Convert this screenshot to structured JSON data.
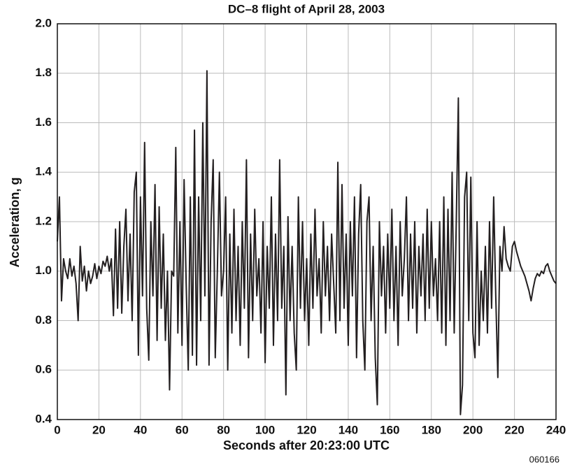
{
  "chart_data": {
    "type": "line",
    "title": "DC–8 flight of April 28, 2003",
    "xlabel": "Seconds after 20:23:00 UTC",
    "ylabel": "Acceleration, g",
    "annotation": "060166",
    "grid": true,
    "xlim": [
      0,
      240
    ],
    "xticks": [
      0,
      20,
      40,
      60,
      80,
      100,
      120,
      140,
      160,
      180,
      200,
      220,
      240
    ],
    "ylim": [
      0.4,
      2.0
    ],
    "yticks": [
      0.4,
      0.6,
      0.8,
      {
        "value": 1,
        "label": "1.0"
      },
      1.2,
      1.4,
      1.6,
      1.8,
      {
        "value": 2,
        "label": "2.0"
      }
    ],
    "x": [
      0,
      1,
      2,
      3,
      4,
      5,
      6,
      7,
      8,
      9,
      10,
      11,
      12,
      13,
      14,
      15,
      16,
      17,
      18,
      19,
      20,
      21,
      22,
      23,
      24,
      25,
      26,
      27,
      28,
      29,
      30,
      31,
      32,
      33,
      34,
      35,
      36,
      37,
      38,
      39,
      40,
      41,
      42,
      43,
      44,
      45,
      46,
      47,
      48,
      49,
      50,
      51,
      52,
      53,
      54,
      55,
      56,
      57,
      58,
      59,
      60,
      61,
      62,
      63,
      64,
      65,
      66,
      67,
      68,
      69,
      70,
      71,
      72,
      73,
      74,
      75,
      76,
      77,
      78,
      79,
      80,
      81,
      82,
      83,
      84,
      85,
      86,
      87,
      88,
      89,
      90,
      91,
      92,
      93,
      94,
      95,
      96,
      97,
      98,
      99,
      100,
      101,
      102,
      103,
      104,
      105,
      106,
      107,
      108,
      109,
      110,
      111,
      112,
      113,
      114,
      115,
      116,
      117,
      118,
      119,
      120,
      121,
      122,
      123,
      124,
      125,
      126,
      127,
      128,
      129,
      130,
      131,
      132,
      133,
      134,
      135,
      136,
      137,
      138,
      139,
      140,
      141,
      142,
      143,
      144,
      145,
      146,
      147,
      148,
      149,
      150,
      151,
      152,
      153,
      154,
      155,
      156,
      157,
      158,
      159,
      160,
      161,
      162,
      163,
      164,
      165,
      166,
      167,
      168,
      169,
      170,
      171,
      172,
      173,
      174,
      175,
      176,
      177,
      178,
      179,
      180,
      181,
      182,
      183,
      184,
      185,
      186,
      187,
      188,
      189,
      190,
      191,
      192,
      193,
      194,
      195,
      196,
      197,
      198,
      199,
      200,
      201,
      202,
      203,
      204,
      205,
      206,
      207,
      208,
      209,
      210,
      211,
      212,
      213,
      214,
      215,
      216,
      217,
      218,
      219,
      220,
      221,
      222,
      223,
      224,
      225,
      226,
      227,
      228,
      229,
      230,
      231,
      232,
      233,
      234,
      235,
      236,
      237,
      238,
      239,
      240
    ],
    "series": [
      {
        "name": "Acceleration",
        "color": "#231f20",
        "values": [
          1.12,
          1.3,
          0.88,
          1.05,
          1.0,
          0.97,
          1.05,
          0.98,
          1.02,
          0.95,
          0.8,
          1.1,
          0.96,
          1.02,
          0.92,
          1.0,
          0.95,
          0.98,
          1.03,
          0.97,
          1.02,
          0.99,
          1.04,
          1.02,
          1.06,
          1.0,
          1.05,
          0.82,
          1.17,
          0.85,
          1.2,
          0.83,
          1.1,
          1.25,
          0.88,
          1.15,
          0.8,
          1.32,
          1.4,
          0.66,
          1.3,
          0.9,
          1.52,
          0.85,
          0.64,
          1.2,
          0.9,
          1.35,
          0.72,
          1.26,
          0.85,
          1.15,
          0.72,
          1.0,
          0.52,
          1.0,
          0.98,
          1.5,
          0.75,
          1.2,
          0.7,
          1.37,
          0.95,
          0.6,
          1.3,
          0.66,
          1.57,
          0.62,
          1.3,
          0.8,
          1.6,
          0.9,
          1.81,
          0.62,
          1.2,
          1.45,
          0.65,
          1.0,
          1.4,
          0.9,
          1.0,
          1.3,
          0.6,
          1.15,
          0.75,
          1.25,
          0.8,
          1.1,
          0.7,
          1.2,
          0.85,
          1.45,
          0.65,
          1.15,
          0.8,
          1.25,
          0.9,
          1.05,
          0.75,
          1.2,
          0.63,
          1.1,
          0.85,
          1.3,
          0.7,
          1.15,
          0.8,
          1.45,
          0.85,
          1.1,
          0.5,
          1.22,
          0.8,
          1.1,
          0.75,
          0.6,
          1.3,
          0.85,
          1.2,
          0.8,
          1.05,
          0.7,
          1.15,
          0.85,
          1.25,
          0.9,
          1.05,
          0.75,
          1.2,
          0.9,
          1.1,
          0.8,
          1.15,
          0.95,
          0.75,
          1.44,
          0.8,
          1.35,
          0.85,
          1.15,
          0.7,
          1.2,
          0.9,
          1.3,
          0.65,
          1.15,
          1.35,
          0.8,
          0.6,
          1.2,
          1.3,
          0.8,
          1.1,
          0.65,
          0.46,
          1.2,
          0.9,
          1.1,
          0.75,
          1.15,
          0.85,
          1.25,
          0.8,
          1.1,
          0.7,
          1.2,
          0.9,
          1.05,
          1.3,
          0.8,
          1.15,
          0.85,
          1.2,
          0.75,
          1.1,
          0.9,
          1.15,
          0.8,
          1.25,
          0.85,
          1.2,
          0.9,
          1.05,
          0.8,
          1.2,
          0.75,
          1.3,
          0.7,
          1.25,
          0.8,
          1.4,
          0.75,
          1.2,
          1.7,
          0.42,
          0.54,
          1.3,
          1.4,
          0.8,
          1.38,
          0.75,
          0.65,
          1.2,
          0.7,
          1.0,
          0.8,
          1.1,
          0.75,
          1.2,
          0.85,
          1.3,
          0.9,
          0.57,
          1.1,
          1.0,
          1.18,
          1.05,
          1.02,
          1.0,
          1.1,
          1.12,
          1.08,
          1.05,
          1.02,
          1.0,
          0.98,
          0.95,
          0.92,
          0.88,
          0.93,
          0.97,
          0.99,
          0.98,
          1.0,
          0.99,
          1.02,
          1.03,
          1.0,
          0.98,
          0.96,
          0.95
        ]
      }
    ]
  }
}
